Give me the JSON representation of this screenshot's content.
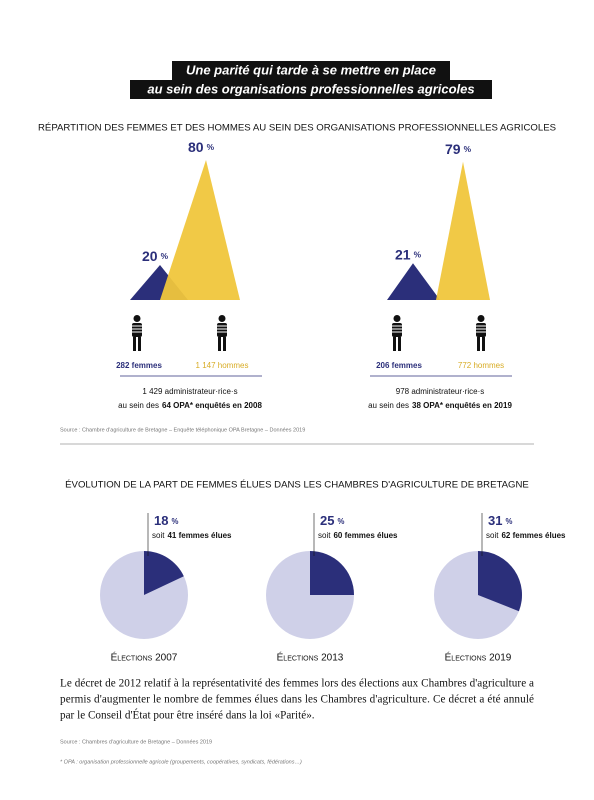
{
  "title": [
    "Une parité qui tarde à se mettre en place",
    "au sein des organisations professionnelles agricoles"
  ],
  "unit": "%",
  "section1": {
    "heading": "RÉPARTITION DES FEMMES ET DES HOMMES AU SEIN DES ORGANISATIONS PROFESSIONNELLES AGRICOLES",
    "panels": [
      {
        "women_pct": 20,
        "men_pct": 80,
        "women_count": "282 femmes",
        "men_count": "1 147 hommes",
        "total": "1 429 administrateur·rice·s",
        "scope_prefix": "au sein des",
        "scope_bold": "64 OPA* enquêtés en 2008"
      },
      {
        "women_pct": 21,
        "men_pct": 79,
        "women_count": "206 femmes",
        "men_count": "772 hommes",
        "total": "978 administrateur·rice·s",
        "scope_prefix": "au sein des",
        "scope_bold": "38 OPA* enquêtés en 2019"
      }
    ],
    "source": "Source : Chambre d'agriculture de Bretagne – Enquête téléphonique OPA Bretagne – Données 2019"
  },
  "section2": {
    "heading": "ÉVOLUTION DE LA PART DE FEMMES ÉLUES DANS LES CHAMBRES D'AGRICULTURE DE BRETAGNE",
    "pies": [
      {
        "value": 18,
        "note_prefix": "soit",
        "note_bold": "41 femmes élues",
        "label": "Élections 2007"
      },
      {
        "value": 25,
        "note_prefix": "soit",
        "note_bold": "60 femmes élues",
        "label": "Élections 2013"
      },
      {
        "value": 31,
        "note_prefix": "soit",
        "note_bold": "62 femmes élues",
        "label": "Élections 2019"
      }
    ],
    "paragraph": [
      "Le décret de 2012 relatif à la représentativité des femmes lors des élections aux Chambres d'agriculture a",
      "permis d'augmenter le nombre de femmes élues dans les Chambres d'agriculture. Ce décret a été annulé",
      "par le Conseil d'État pour être inséré dans la loi «Parité»."
    ],
    "source": "Source : Chambres d'agriculture de Bretagne – Données 2019",
    "footnote": "* OPA : organisation professionnelle agricole (groupements, coopératives, syndicats, fédérations…)"
  }
}
